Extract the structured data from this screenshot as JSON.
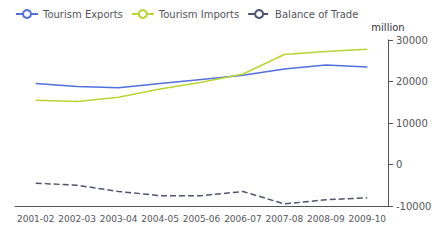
{
  "chart_data": {
    "type": "line",
    "categories": [
      "2001-02",
      "2002-03",
      "2003-04",
      "2004-05",
      "2005-06",
      "2006-07",
      "2007-08",
      "2008-09",
      "2009-10"
    ],
    "series": [
      {
        "name": "Tourism Exports",
        "values": [
          19500,
          18800,
          18500,
          19500,
          20500,
          21500,
          23000,
          24000,
          23500
        ]
      },
      {
        "name": "Tourism Imports",
        "values": [
          15500,
          15200,
          16200,
          18200,
          19800,
          21800,
          26500,
          27200,
          27800
        ]
      },
      {
        "name": "Balance of Trade",
        "values": [
          -4500,
          -5000,
          -6500,
          -7500,
          -7500,
          -6500,
          -9500,
          -8500,
          -8000
        ],
        "line_style": "dashed"
      }
    ],
    "ylabel": "million",
    "ylim": [
      -10000,
      30000
    ],
    "yticks": [
      -10000,
      0,
      10000,
      20000,
      30000
    ],
    "grid": false,
    "legend": "upper left"
  }
}
